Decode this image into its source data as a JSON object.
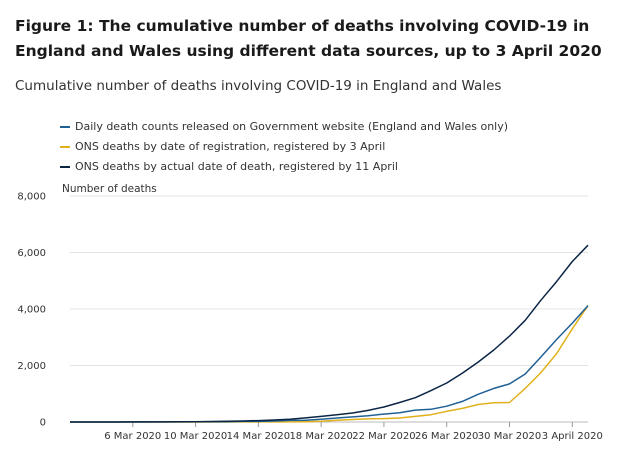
{
  "figure": {
    "title": "Figure 1: The cumulative number of deaths involving COVID-19 in England and Wales using different data sources, up to 3 April 2020"
  },
  "chart_data": {
    "type": "line",
    "title": "Cumulative number of deaths involving COVID-19 in England and Wales",
    "xlabel": "",
    "ylabel": "Number of deaths",
    "ylim": [
      0,
      8000
    ],
    "yticks": [
      0,
      2000,
      4000,
      6000,
      8000
    ],
    "ytick_labels": [
      "0",
      "2,000",
      "4,000",
      "6,000",
      "8,000"
    ],
    "xtick_labels": [
      "6 Mar 2020",
      "10 Mar 2020",
      "14 Mar 2020",
      "18 Mar 2020",
      "22 Mar 2020",
      "26 Mar 2020",
      "30 Mar 2020",
      "3 April 2020"
    ],
    "x": [
      "2 Mar",
      "3 Mar",
      "4 Mar",
      "5 Mar",
      "6 Mar",
      "7 Mar",
      "8 Mar",
      "9 Mar",
      "10 Mar",
      "11 Mar",
      "12 Mar",
      "13 Mar",
      "14 Mar",
      "15 Mar",
      "16 Mar",
      "17 Mar",
      "18 Mar",
      "19 Mar",
      "20 Mar",
      "21 Mar",
      "22 Mar",
      "23 Mar",
      "24 Mar",
      "25 Mar",
      "26 Mar",
      "27 Mar",
      "28 Mar",
      "29 Mar",
      "30 Mar",
      "31 Mar",
      "1 Apr",
      "2 Apr",
      "3 Apr"
    ],
    "grid": true,
    "series": [
      {
        "name": "Daily death counts released on Government website (England and Wales only)",
        "color": "#206095",
        "values": [
          0,
          0,
          0,
          0,
          1,
          2,
          2,
          3,
          6,
          8,
          10,
          20,
          21,
          35,
          55,
          65,
          100,
          140,
          180,
          220,
          280,
          330,
          420,
          450,
          560,
          730,
          980,
          1190,
          1350,
          1700,
          2300,
          2920,
          3500
        ]
      },
      {
        "name": "ONS deaths by date of registration, registered by 3 April",
        "color": "#e0b11c",
        "values": [
          0,
          0,
          0,
          0,
          0,
          0,
          0,
          0,
          0,
          0,
          0,
          2,
          2,
          3,
          5,
          10,
          30,
          60,
          90,
          110,
          120,
          140,
          200,
          260,
          380,
          480,
          620,
          680,
          690,
          1190,
          1750,
          2420,
          3300
        ]
      },
      {
        "name": "ONS deaths by actual date of death, registered by 11 April",
        "color": "#0b2545",
        "values": [
          0,
          0,
          0,
          1,
          2,
          3,
          5,
          8,
          12,
          17,
          24,
          35,
          50,
          70,
          100,
          145,
          200,
          260,
          320,
          410,
          530,
          690,
          860,
          1110,
          1380,
          1730,
          2120,
          2550,
          3040,
          3600,
          4310,
          4970,
          5680
        ]
      }
    ],
    "extra_point": {
      "x": "3 April 2020",
      "values": [
        4120,
        4120,
        6260
      ]
    }
  }
}
